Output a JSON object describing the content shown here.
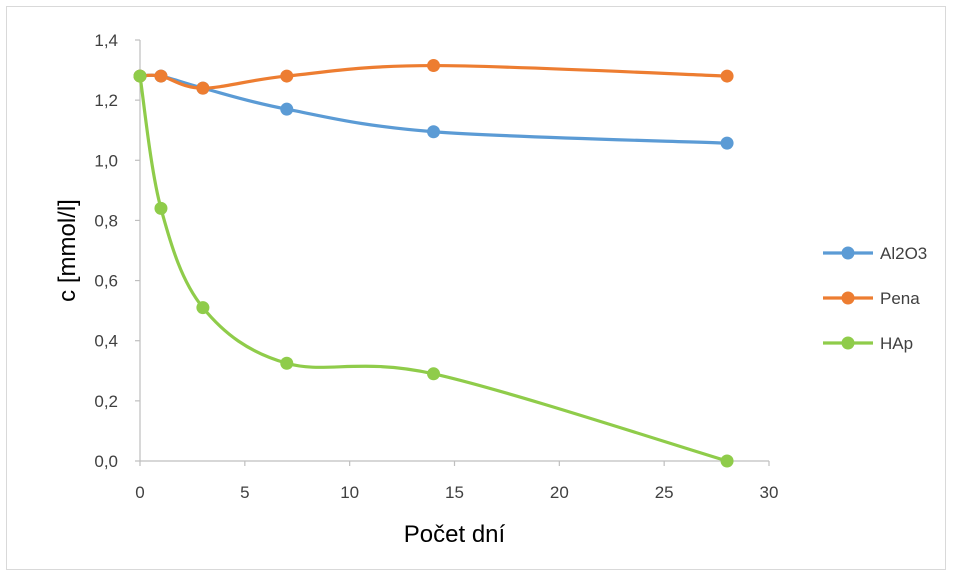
{
  "chart_data": {
    "type": "line",
    "title": "",
    "xlabel": "Počet dní",
    "ylabel": "c [mmol/l]",
    "xlim": [
      0,
      30
    ],
    "ylim": [
      0,
      1.4
    ],
    "x_ticks": [
      0,
      5,
      10,
      15,
      20,
      25,
      30
    ],
    "x_tick_labels": [
      "0",
      "5",
      "10",
      "15",
      "20",
      "25",
      "30"
    ],
    "y_ticks": [
      0,
      0.2,
      0.4,
      0.6,
      0.8,
      1.0,
      1.2,
      1.4
    ],
    "y_tick_labels": [
      "0,0",
      "0,2",
      "0,4",
      "0,6",
      "0,8",
      "1,0",
      "1,2",
      "1,4"
    ],
    "grid": false,
    "smooth": true,
    "legend_position": "right",
    "series": [
      {
        "name": "Al2O3",
        "color": "#5B9BD5",
        "x": [
          0,
          1,
          3,
          7,
          14,
          28
        ],
        "y": [
          1.28,
          1.28,
          1.24,
          1.17,
          1.095,
          1.057
        ]
      },
      {
        "name": "Pena",
        "color": "#ED7D31",
        "x": [
          0,
          1,
          3,
          7,
          14,
          28
        ],
        "y": [
          1.28,
          1.28,
          1.24,
          1.28,
          1.315,
          1.28
        ]
      },
      {
        "name": "HAp",
        "color": "#8FCC4A",
        "x": [
          0,
          1,
          3,
          7,
          14,
          28
        ],
        "y": [
          1.28,
          0.84,
          0.51,
          0.325,
          0.29,
          0.0
        ]
      }
    ]
  }
}
